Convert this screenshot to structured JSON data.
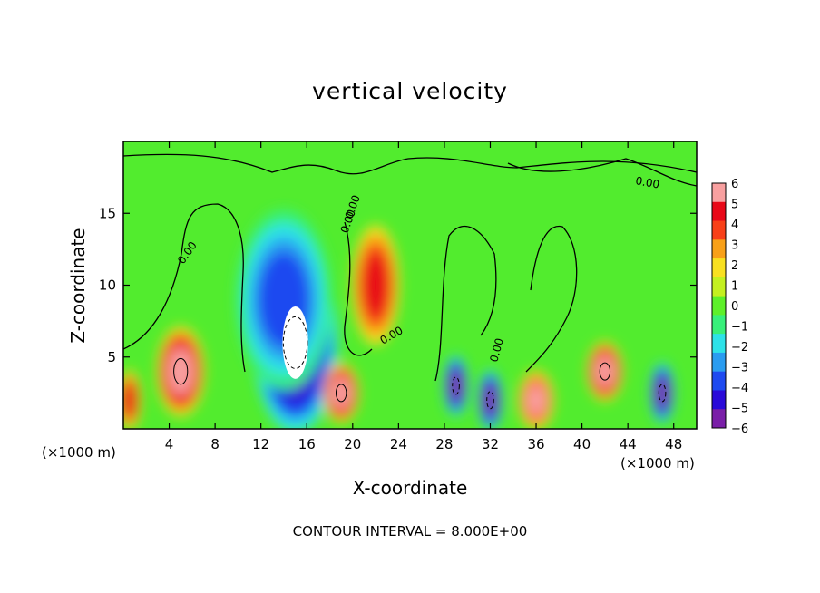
{
  "chart_data": {
    "type": "heatmap",
    "title": "vertical velocity",
    "xlabel": "X-coordinate",
    "ylabel": "Z-coordinate",
    "x_unit_label": "(×1000 m)",
    "footer": "CONTOUR INTERVAL = 8.000E+00",
    "xlim": [
      0,
      50
    ],
    "ylim": [
      0,
      20
    ],
    "xticks": [
      4,
      8,
      12,
      16,
      20,
      24,
      28,
      32,
      36,
      40,
      44,
      48
    ],
    "yticks": [
      5,
      10,
      15
    ],
    "colorbar": {
      "ticks": [
        6,
        5,
        4,
        3,
        2,
        1,
        0,
        -1,
        -2,
        -3,
        -4,
        -5,
        -6
      ],
      "range": [
        -6,
        6
      ],
      "colors": [
        "#7a1fa8",
        "#2a0ad8",
        "#1e4af0",
        "#2a9cf0",
        "#2ee2e8",
        "#38f07a",
        "#5ef02a",
        "#c4f020",
        "#f8e020",
        "#f8a018",
        "#f84018",
        "#e80818",
        "#f8a0a0"
      ]
    },
    "contour_labels": [
      "0.00",
      "0.00",
      "0.00",
      "0.00",
      "0.00",
      "0.00"
    ],
    "features": [
      {
        "x": 15,
        "z": 6,
        "w": 3.5,
        "sz": 6,
        "value": -7,
        "kind": "downdraft core"
      },
      {
        "x": 14,
        "z": 9,
        "w": 4,
        "sz": 6,
        "value": -3,
        "kind": "downdraft"
      },
      {
        "x": 5,
        "z": 4,
        "w": 2,
        "sz": 3,
        "value": 6,
        "kind": "updraft"
      },
      {
        "x": 19,
        "z": 2.5,
        "w": 1.5,
        "sz": 2,
        "value": 6,
        "kind": "updraft"
      },
      {
        "x": 22,
        "z": 10,
        "w": 2,
        "sz": 4,
        "value": 4,
        "kind": "updraft"
      },
      {
        "x": 29,
        "z": 3,
        "w": 1,
        "sz": 2,
        "value": -6,
        "kind": "downdraft"
      },
      {
        "x": 32,
        "z": 2,
        "w": 1,
        "sz": 2,
        "value": -6,
        "kind": "downdraft"
      },
      {
        "x": 36,
        "z": 2,
        "w": 1.5,
        "sz": 2,
        "value": 5,
        "kind": "updraft"
      },
      {
        "x": 42,
        "z": 4,
        "w": 1.5,
        "sz": 2,
        "value": 6,
        "kind": "updraft"
      },
      {
        "x": 47,
        "z": 2.5,
        "w": 1,
        "sz": 2,
        "value": -6,
        "kind": "downdraft"
      },
      {
        "x": 0.5,
        "z": 2,
        "w": 1,
        "sz": 2,
        "value": 4,
        "kind": "updraft"
      }
    ]
  }
}
